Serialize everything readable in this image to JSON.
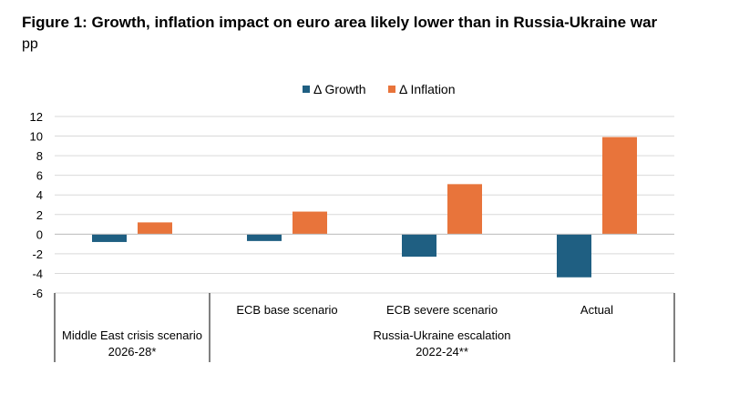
{
  "chart_data": {
    "type": "bar",
    "title": "Figure 1: Growth, inflation impact on euro area likely lower than in Russia-Ukraine war",
    "subtitle": "pp",
    "categories": [
      "",
      "ECB base scenario",
      "ECB severe scenario",
      "Actual"
    ],
    "groups": [
      {
        "label_line1": "Middle East crisis scenario",
        "label_line2": "2026-28*",
        "categories": [
          0
        ]
      },
      {
        "label_line1": "Russia-Ukraine escalation",
        "label_line2": "2022-24**",
        "categories": [
          1,
          2,
          3
        ]
      }
    ],
    "series": [
      {
        "name": "Δ Growth",
        "color": "#1f5f82",
        "values": [
          -0.8,
          -0.7,
          -2.3,
          -4.4
        ]
      },
      {
        "name": "Δ Inflation",
        "color": "#e8743b",
        "values": [
          1.2,
          2.3,
          5.1,
          9.9
        ]
      }
    ],
    "ylim": [
      -6,
      12
    ],
    "yticks": [
      12,
      10,
      8,
      6,
      4,
      2,
      0,
      -2,
      -4,
      -6
    ],
    "grid": true,
    "legend": "top-center",
    "xlabel": "",
    "ylabel": ""
  }
}
